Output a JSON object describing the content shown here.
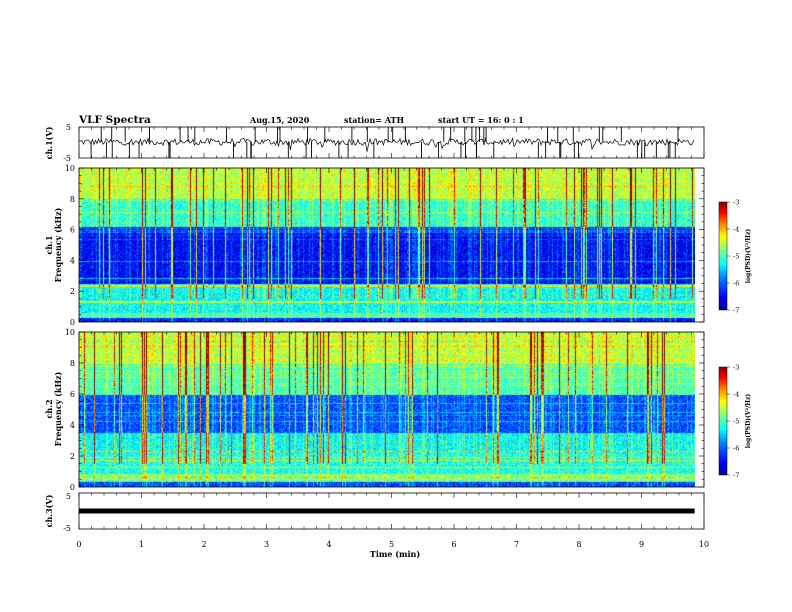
{
  "header": {
    "title": "VLF Spectra",
    "date": "Aug.15, 2020",
    "station": "station= ATH",
    "start_time": "start  UT =   16: 0  : 1"
  },
  "chart_data": [
    {
      "type": "line",
      "name": "ch1-waveform",
      "ylabel": "ch.1(V)",
      "ylim": [
        -5,
        5
      ],
      "y_ticks": [
        "5",
        "-5"
      ],
      "xlim": [
        0,
        10
      ],
      "baseline_v": 0.2,
      "noise_band_v": [
        -1.5,
        1.8
      ],
      "spike_range_v": [
        -5,
        5
      ],
      "data_end_min": 9.85
    },
    {
      "type": "heatmap",
      "name": "ch1-spectrogram",
      "ylabel": "ch.1\nFrequency (kHz)",
      "ylim": [
        0,
        10
      ],
      "y_ticks": [
        "0",
        "2",
        "4",
        "6",
        "8",
        "10"
      ],
      "xlim": [
        0,
        10
      ],
      "data_end_min": 9.85,
      "colorbar": {
        "label": "log(PSD)(V²/Hz)",
        "range": [
          -7,
          -3
        ],
        "ticks": [
          "-3",
          "-4",
          "-5",
          "-6",
          "-7"
        ]
      },
      "colormap": [
        "#00008f",
        "#0000ff",
        "#0080ff",
        "#00ffff",
        "#80ff80",
        "#ffff00",
        "#ff8000",
        "#ff0000",
        "#800000"
      ]
    },
    {
      "type": "heatmap",
      "name": "ch2-spectrogram",
      "ylabel": "ch.2\nFrequency (kHz)",
      "ylim": [
        0,
        10
      ],
      "y_ticks": [
        "0",
        "2",
        "4",
        "6",
        "8",
        "10"
      ],
      "xlim": [
        0,
        10
      ],
      "data_end_min": 9.85,
      "colorbar": {
        "label": "log(PSD)(V²/Hz)",
        "range": [
          -7,
          -3
        ],
        "ticks": [
          "-3",
          "-4",
          "-5",
          "-6",
          "-7"
        ]
      }
    },
    {
      "type": "line",
      "name": "ch3-waveform",
      "ylabel": "ch.3(V)",
      "ylim": [
        -5,
        5
      ],
      "y_ticks": [
        "5",
        "-5"
      ],
      "xlim": [
        0,
        10
      ],
      "baseline_v": 0.0,
      "data_end_min": 9.85
    }
  ],
  "x_axis": {
    "label": "Time (min)",
    "ticks": [
      "0",
      "1",
      "2",
      "3",
      "4",
      "5",
      "6",
      "7",
      "8",
      "9",
      "10"
    ]
  }
}
